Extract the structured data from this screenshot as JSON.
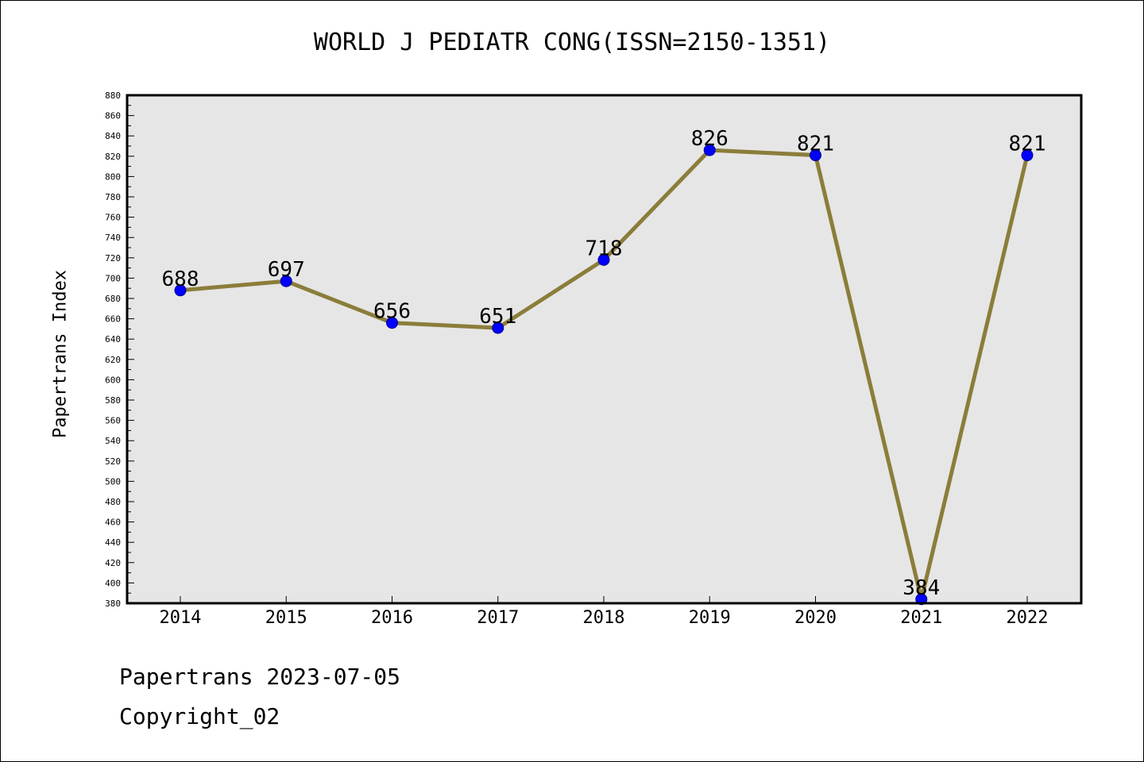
{
  "chart_data": {
    "type": "line",
    "title": "WORLD J PEDIATR CONG(ISSN=2150-1351)",
    "xlabel": "",
    "ylabel": "Papertrans Index",
    "categories": [
      "2014",
      "2015",
      "2016",
      "2017",
      "2018",
      "2019",
      "2020",
      "2021",
      "2022"
    ],
    "series": [
      {
        "values": [
          688,
          697,
          656,
          651,
          718,
          826,
          821,
          384,
          821
        ]
      }
    ],
    "data_labels": [
      "688",
      "697",
      "656",
      "651",
      "718",
      "826",
      "821",
      "384",
      "821"
    ],
    "ylim": [
      380,
      880
    ],
    "yticks": [
      "380",
      "400",
      "420",
      "440",
      "460",
      "480",
      "500",
      "520",
      "540",
      "560",
      "580",
      "600",
      "620",
      "640",
      "660",
      "680",
      "700",
      "720",
      "740",
      "760",
      "780",
      "800",
      "820",
      "840",
      "860",
      "880"
    ],
    "grid": false,
    "colors": {
      "line": "#8B7D3A",
      "marker": "#0000FF",
      "plot_bg": "#E6E6E6"
    }
  },
  "footer": {
    "line1": "Papertrans 2023-07-05",
    "line2": "Copyright_02"
  }
}
